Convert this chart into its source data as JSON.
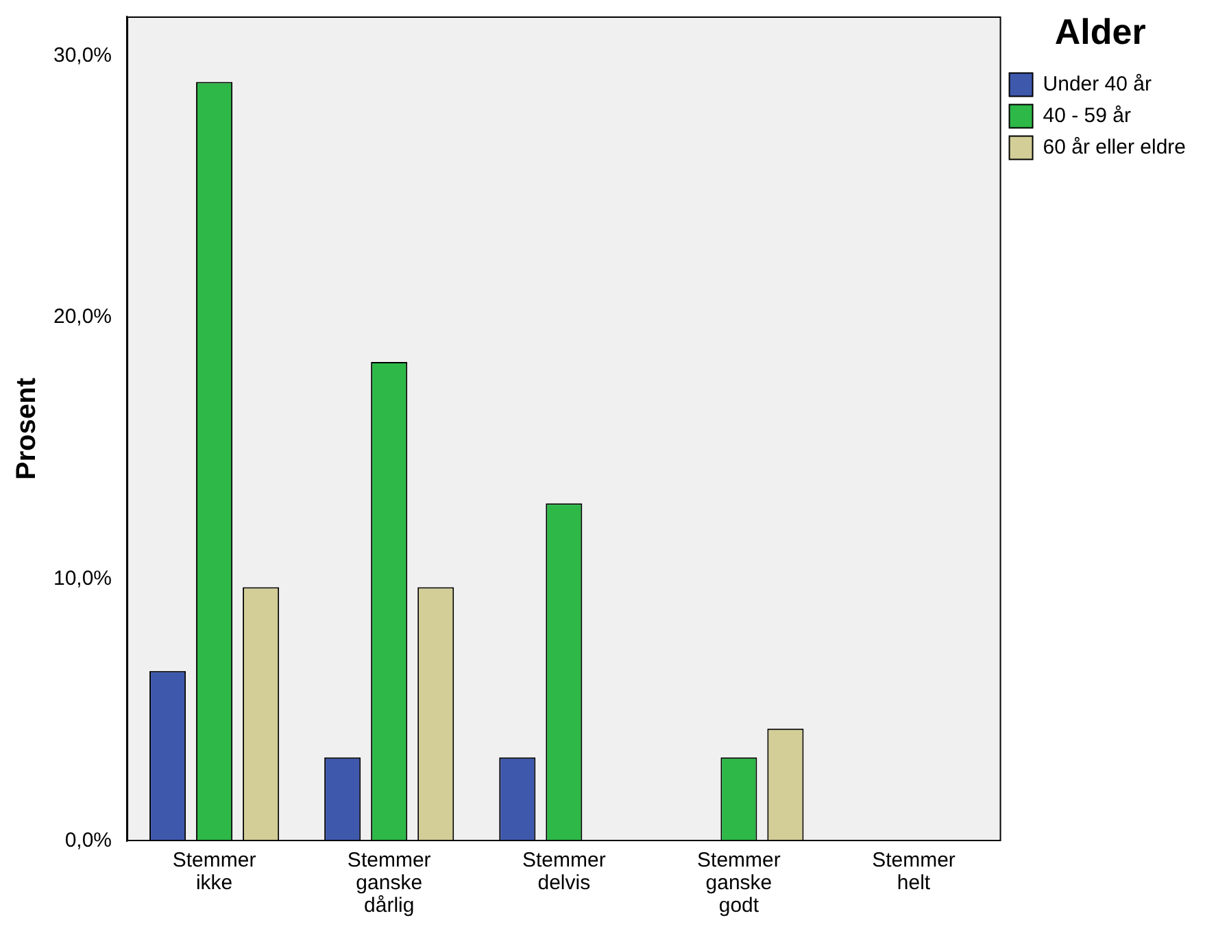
{
  "chart_data": {
    "type": "bar",
    "ylabel": "Prosent",
    "legend_title": "Alder",
    "legend": "top right",
    "grid": false,
    "categories": [
      "Stemmer ikke",
      "Stemmer ganske dårlig",
      "Stemmer delvis",
      "Stemmer ganske godt",
      "Stemmer helt"
    ],
    "series": [
      {
        "name": "Under 40 år",
        "color": "#3e58ac",
        "values": [
          6.5,
          3.2,
          3.2,
          0,
          0
        ]
      },
      {
        "name": "40 - 59 år",
        "color": "#2eb848",
        "values": [
          29.0,
          18.3,
          12.9,
          3.2,
          0
        ]
      },
      {
        "name": "60 år eller eldre",
        "color": "#d3ce97",
        "values": [
          9.7,
          9.7,
          0,
          4.3,
          0
        ]
      }
    ],
    "ylim": [
      0,
      31.5
    ],
    "yticks": [
      {
        "value": 0,
        "label": "0,0%"
      },
      {
        "value": 10,
        "label": "10,0%"
      },
      {
        "value": 20,
        "label": "20,0%"
      },
      {
        "value": 30,
        "label": "30,0%"
      }
    ]
  }
}
